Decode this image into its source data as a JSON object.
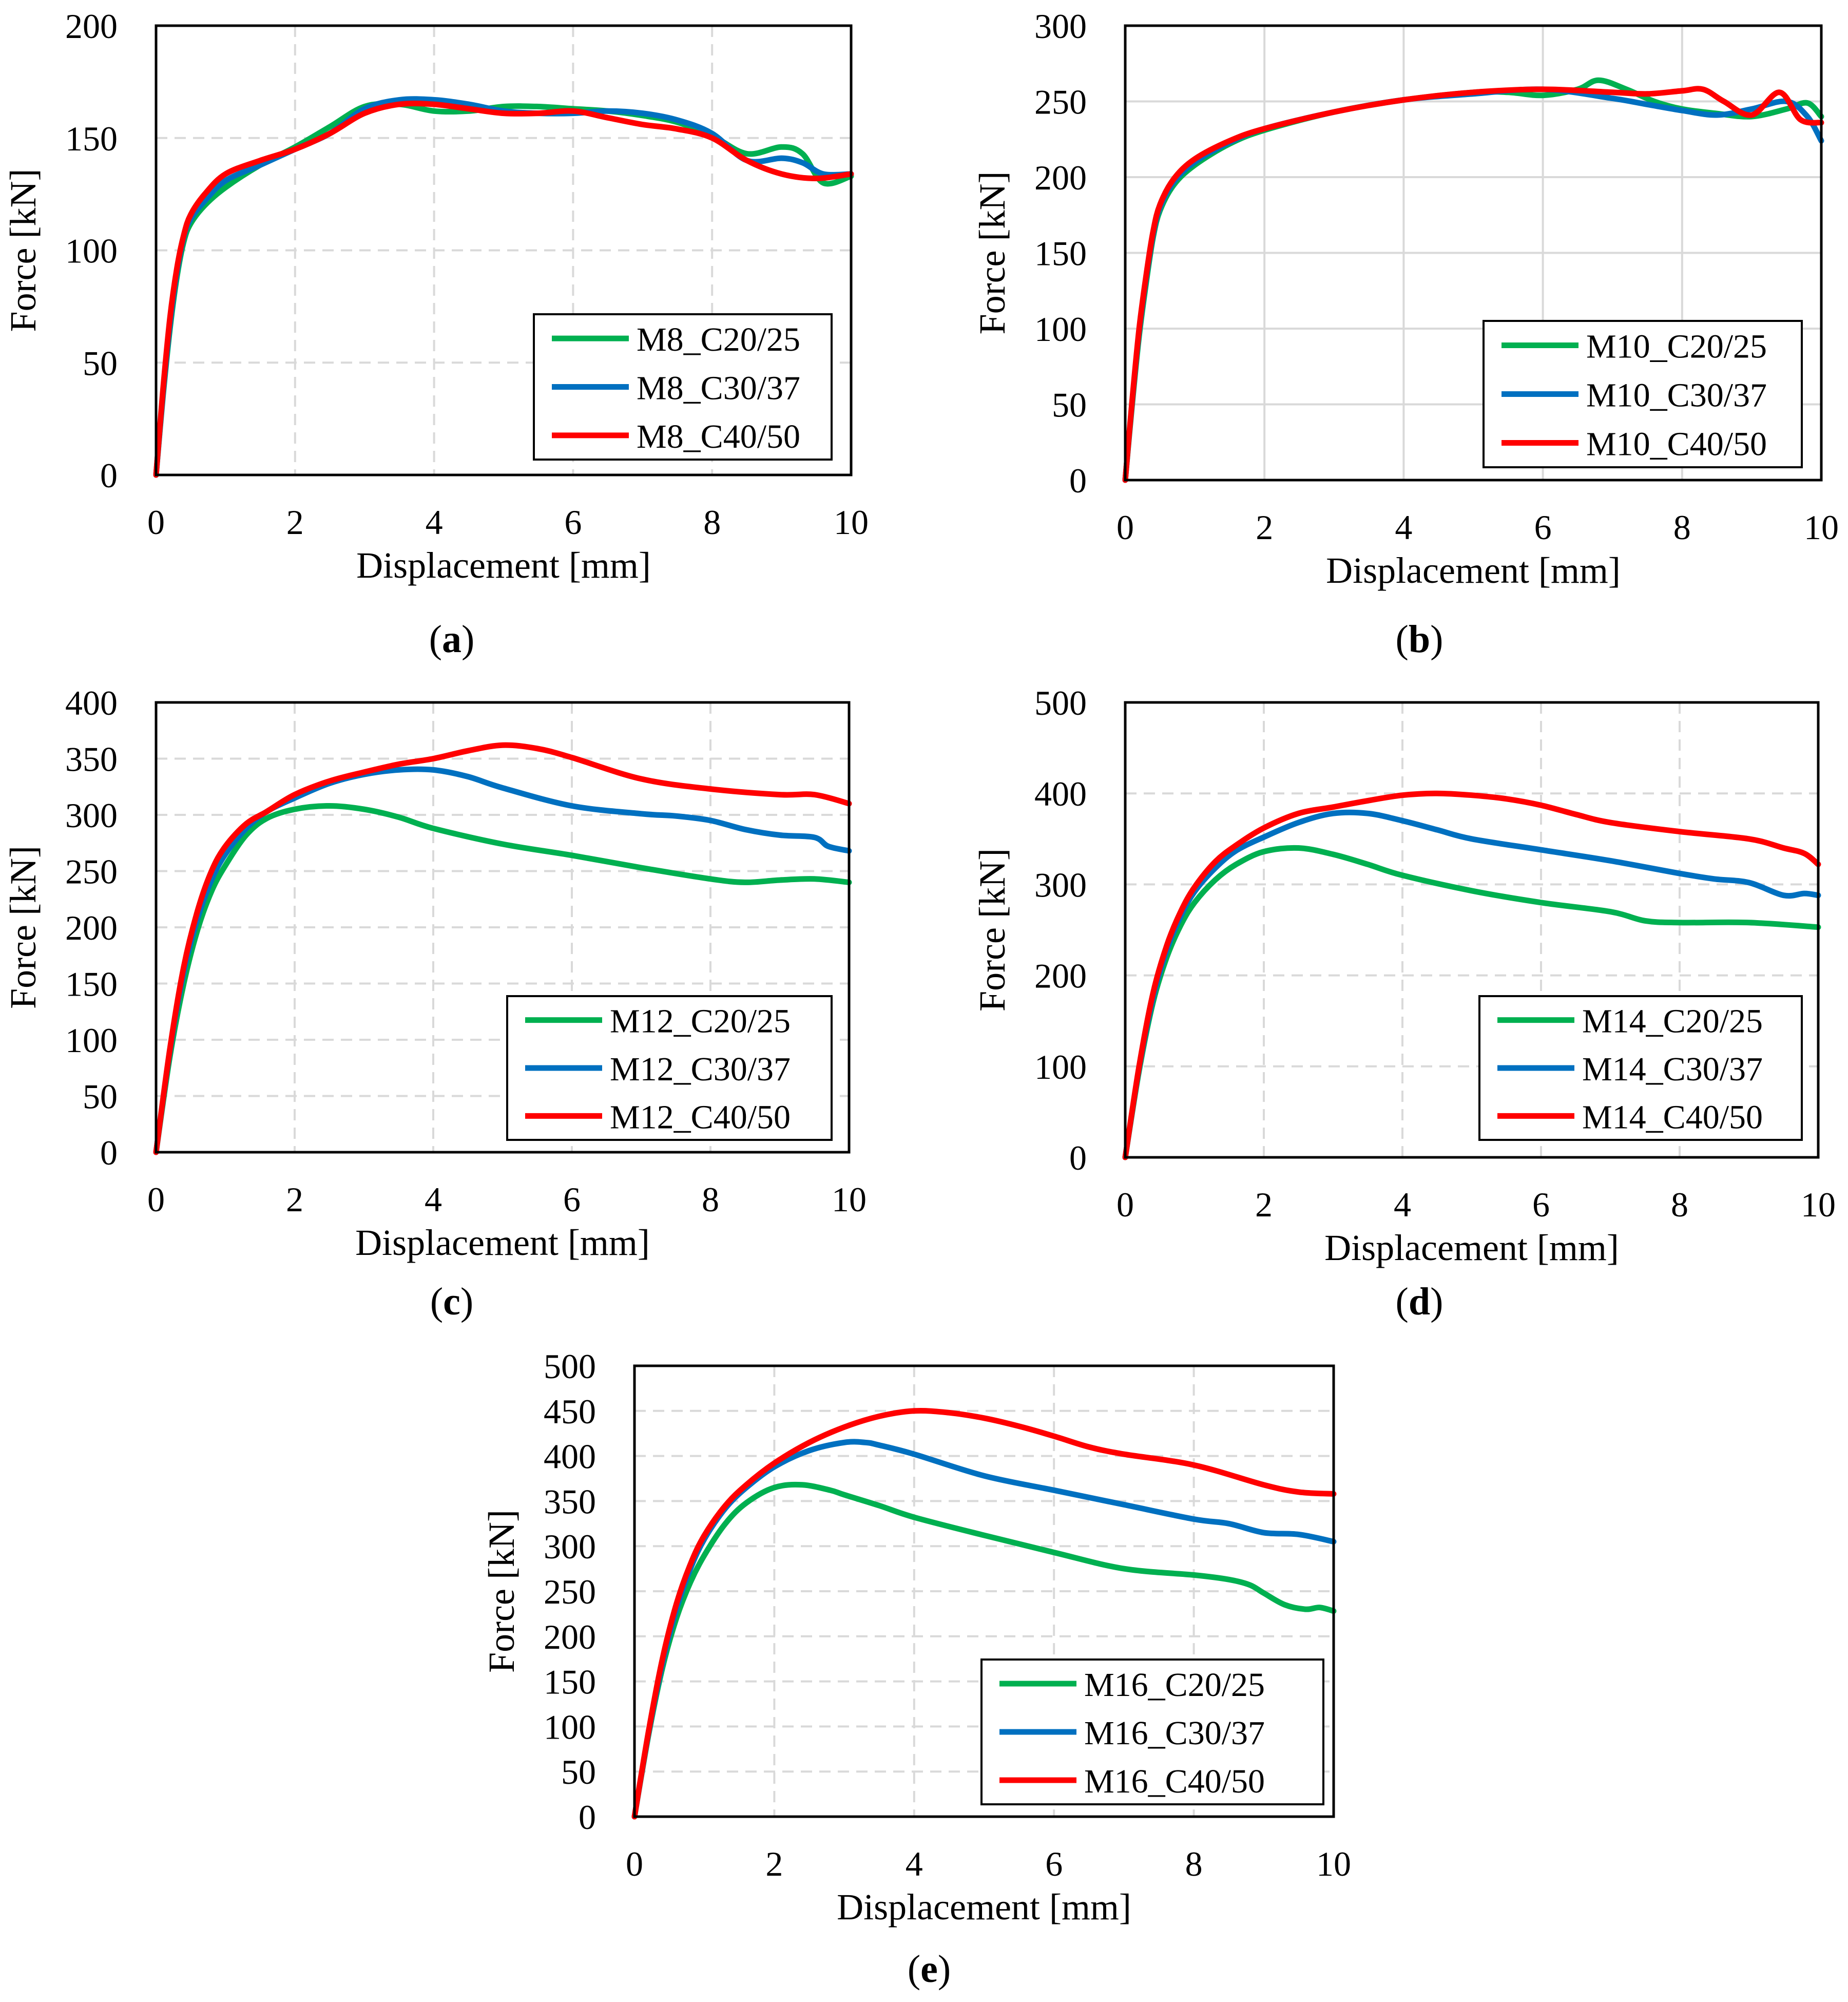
{
  "chart_data": [
    {
      "panel_label": "(a)",
      "type": "line",
      "xlabel": "Displacement [mm]",
      "ylabel": "Force [kN]",
      "xlim": [
        0,
        10
      ],
      "ylim": [
        0,
        200
      ],
      "xticks": [
        0,
        2,
        4,
        6,
        8,
        10
      ],
      "yticks": [
        0,
        50,
        100,
        150,
        200
      ],
      "grid": "dashed",
      "legend_position": "bottom-right",
      "series": [
        {
          "name": "M8_C20/25",
          "color": "#00b050",
          "x": [
            0,
            0.1,
            0.2,
            0.3,
            0.4,
            0.5,
            0.7,
            1.0,
            1.5,
            2.0,
            2.5,
            3.0,
            3.5,
            4.0,
            4.5,
            5.0,
            5.5,
            6.0,
            6.5,
            7.0,
            7.5,
            8.0,
            8.5,
            9.0,
            9.3,
            9.6,
            10.0
          ],
          "y": [
            0,
            35,
            65,
            88,
            104,
            112,
            120,
            128,
            138,
            146,
            155,
            164,
            165,
            162,
            162,
            164,
            164,
            163,
            162,
            160,
            157,
            151,
            143,
            146,
            143,
            130,
            133
          ]
        },
        {
          "name": "M8_C30/37",
          "color": "#0070c0",
          "x": [
            0,
            0.1,
            0.2,
            0.3,
            0.4,
            0.5,
            0.7,
            1.0,
            1.5,
            2.0,
            2.5,
            3.0,
            3.5,
            4.0,
            4.5,
            5.0,
            5.5,
            6.0,
            6.5,
            7.0,
            7.5,
            8.0,
            8.5,
            9.0,
            9.3,
            9.6,
            10.0
          ],
          "y": [
            0,
            36,
            67,
            90,
            106,
            114,
            122,
            131,
            138,
            145,
            152,
            163,
            167,
            167,
            165,
            162,
            161,
            161,
            162,
            161,
            158,
            152,
            140,
            141,
            139,
            134,
            134
          ]
        },
        {
          "name": "M8_C40/50",
          "color": "#ff0000",
          "x": [
            0,
            0.1,
            0.2,
            0.3,
            0.4,
            0.5,
            0.7,
            1.0,
            1.5,
            2.0,
            2.5,
            3.0,
            3.5,
            4.0,
            4.5,
            5.0,
            5.5,
            6.0,
            6.5,
            7.0,
            7.5,
            8.0,
            8.5,
            9.0,
            9.5,
            10.0
          ],
          "y": [
            0,
            38,
            70,
            92,
            107,
            116,
            125,
            134,
            140,
            145,
            152,
            161,
            165,
            165,
            163,
            161,
            161,
            162,
            159,
            156,
            154,
            150,
            140,
            134,
            132,
            134
          ]
        }
      ]
    },
    {
      "panel_label": "(b)",
      "type": "line",
      "xlabel": "Displacement [mm]",
      "ylabel": "Force [kN]",
      "xlim": [
        0,
        10
      ],
      "ylim": [
        0,
        300
      ],
      "xticks": [
        0,
        2,
        4,
        6,
        8,
        10
      ],
      "yticks": [
        0,
        50,
        100,
        150,
        200,
        250,
        300
      ],
      "grid": "solid",
      "legend_position": "bottom-right",
      "series": [
        {
          "name": "M10_C20/25",
          "color": "#00b050",
          "x": [
            0,
            0.1,
            0.2,
            0.3,
            0.4,
            0.5,
            0.7,
            1.0,
            1.5,
            2.0,
            3.0,
            4.0,
            5.0,
            5.5,
            6.0,
            6.5,
            6.8,
            7.2,
            7.6,
            8.0,
            8.5,
            9.0,
            9.5,
            9.8,
            10.0
          ],
          "y": [
            0,
            50,
            95,
            130,
            160,
            178,
            195,
            208,
            222,
            231,
            243,
            251,
            256,
            256,
            254,
            258,
            264,
            258,
            250,
            245,
            242,
            240,
            245,
            249,
            240
          ]
        },
        {
          "name": "M10_C30/37",
          "color": "#0070c0",
          "x": [
            0,
            0.1,
            0.2,
            0.3,
            0.4,
            0.5,
            0.7,
            1.0,
            1.5,
            2.0,
            3.0,
            4.0,
            5.0,
            6.0,
            7.0,
            7.5,
            8.0,
            8.5,
            9.0,
            9.5,
            9.8,
            10.0
          ],
          "y": [
            0,
            52,
            98,
            133,
            162,
            180,
            197,
            210,
            223,
            232,
            243,
            251,
            255,
            258,
            252,
            248,
            244,
            241,
            245,
            250,
            240,
            224
          ]
        },
        {
          "name": "M10_C40/50",
          "color": "#ff0000",
          "x": [
            0,
            0.1,
            0.2,
            0.3,
            0.4,
            0.5,
            0.7,
            1.0,
            1.5,
            2.0,
            3.0,
            4.0,
            5.0,
            6.0,
            7.0,
            7.5,
            8.0,
            8.3,
            8.6,
            9.0,
            9.4,
            9.7,
            10.0
          ],
          "y": [
            0,
            53,
            100,
            135,
            164,
            182,
            199,
            212,
            224,
            232,
            243,
            251,
            256,
            258,
            256,
            255,
            257,
            258,
            250,
            241,
            256,
            238,
            236
          ]
        }
      ]
    },
    {
      "panel_label": "(c)",
      "type": "line",
      "xlabel": "Displacement [mm]",
      "ylabel": "Force [kN]",
      "xlim": [
        0,
        10
      ],
      "ylim": [
        0,
        400
      ],
      "xticks": [
        0,
        2,
        4,
        6,
        8,
        10
      ],
      "yticks": [
        0,
        50,
        100,
        150,
        200,
        250,
        300,
        350,
        400
      ],
      "grid": "dashed",
      "legend_position": "bottom-right",
      "series": [
        {
          "name": "M12_C20/25",
          "color": "#00b050",
          "x": [
            0,
            0.2,
            0.4,
            0.6,
            0.8,
            1.0,
            1.3,
            1.6,
            2.0,
            2.5,
            3.0,
            3.5,
            4.0,
            5.0,
            6.0,
            7.0,
            8.0,
            8.5,
            9.0,
            9.5,
            10.0
          ],
          "y": [
            0,
            85,
            150,
            198,
            232,
            255,
            282,
            297,
            305,
            308,
            305,
            298,
            288,
            274,
            264,
            253,
            243,
            240,
            242,
            243,
            240
          ]
        },
        {
          "name": "M12_C30/37",
          "color": "#0070c0",
          "x": [
            0,
            0.2,
            0.4,
            0.6,
            0.8,
            1.0,
            1.3,
            1.6,
            2.0,
            2.5,
            3.0,
            3.5,
            4.0,
            4.5,
            5.0,
            6.0,
            7.0,
            7.5,
            8.0,
            8.5,
            9.0,
            9.5,
            9.7,
            10.0
          ],
          "y": [
            0,
            90,
            160,
            208,
            242,
            265,
            288,
            303,
            315,
            328,
            336,
            340,
            340,
            334,
            324,
            308,
            301,
            299,
            295,
            287,
            282,
            280,
            272,
            268
          ]
        },
        {
          "name": "M12_C40/50",
          "color": "#ff0000",
          "x": [
            0,
            0.2,
            0.4,
            0.6,
            0.8,
            1.0,
            1.3,
            1.6,
            2.0,
            2.5,
            3.0,
            3.5,
            4.0,
            4.5,
            5.0,
            5.5,
            6.0,
            7.0,
            8.0,
            9.0,
            9.5,
            10.0
          ],
          "y": [
            0,
            92,
            165,
            215,
            250,
            272,
            292,
            303,
            318,
            330,
            338,
            345,
            350,
            357,
            362,
            359,
            351,
            332,
            323,
            318,
            318,
            310
          ]
        }
      ]
    },
    {
      "panel_label": "(d)",
      "type": "line",
      "xlabel": "Displacement [mm]",
      "ylabel": "Force [kN]",
      "xlim": [
        0,
        10
      ],
      "ylim": [
        0,
        500
      ],
      "xticks": [
        0,
        2,
        4,
        6,
        8,
        10
      ],
      "yticks": [
        0,
        100,
        200,
        300,
        400,
        500
      ],
      "grid": "dashed",
      "legend_position": "bottom-right",
      "series": [
        {
          "name": "M14_C20/25",
          "color": "#00b050",
          "x": [
            0,
            0.2,
            0.4,
            0.6,
            0.8,
            1.0,
            1.3,
            1.6,
            2.0,
            2.5,
            3.0,
            3.5,
            4.0,
            5.0,
            6.0,
            7.0,
            7.5,
            8.0,
            9.0,
            10.0
          ],
          "y": [
            0,
            95,
            170,
            220,
            255,
            280,
            305,
            322,
            336,
            340,
            333,
            322,
            310,
            293,
            280,
            270,
            260,
            258,
            258,
            253
          ]
        },
        {
          "name": "M14_C30/37",
          "color": "#0070c0",
          "x": [
            0,
            0.2,
            0.4,
            0.6,
            0.8,
            1.0,
            1.3,
            1.6,
            2.0,
            2.5,
            3.0,
            3.5,
            4.0,
            4.5,
            5.0,
            6.0,
            7.0,
            8.0,
            8.5,
            9.0,
            9.5,
            9.8,
            10.0
          ],
          "y": [
            0,
            98,
            175,
            228,
            265,
            292,
            318,
            337,
            352,
            368,
            378,
            378,
            370,
            360,
            350,
            338,
            326,
            312,
            306,
            302,
            288,
            290,
            288
          ]
        },
        {
          "name": "M14_C40/50",
          "color": "#ff0000",
          "x": [
            0,
            0.2,
            0.4,
            0.6,
            0.8,
            1.0,
            1.3,
            1.6,
            2.0,
            2.5,
            3.0,
            3.5,
            4.0,
            4.5,
            5.0,
            5.5,
            6.0,
            6.5,
            7.0,
            8.0,
            9.0,
            9.5,
            9.8,
            10.0
          ],
          "y": [
            0,
            100,
            180,
            233,
            270,
            297,
            325,
            343,
            362,
            378,
            385,
            392,
            398,
            400,
            398,
            394,
            387,
            377,
            368,
            358,
            350,
            340,
            334,
            322
          ]
        }
      ]
    },
    {
      "panel_label": "(e)",
      "type": "line",
      "xlabel": "Displacement [mm]",
      "ylabel": "Force [kN]",
      "xlim": [
        0,
        10
      ],
      "ylim": [
        0,
        500
      ],
      "xticks": [
        0,
        2,
        4,
        6,
        8,
        10
      ],
      "yticks": [
        0,
        50,
        100,
        150,
        200,
        250,
        300,
        350,
        400,
        450,
        500
      ],
      "grid": "dashed",
      "legend_position": "bottom-right",
      "series": [
        {
          "name": "M16_C20/25",
          "color": "#00b050",
          "x": [
            0,
            0.2,
            0.4,
            0.6,
            0.8,
            1.0,
            1.3,
            1.6,
            2.0,
            2.4,
            2.8,
            3.0,
            3.5,
            4.0,
            5.0,
            6.0,
            7.0,
            8.0,
            8.5,
            8.8,
            9.0,
            9.3,
            9.6,
            9.8,
            10.0
          ],
          "y": [
            0,
            90,
            165,
            220,
            260,
            290,
            325,
            348,
            365,
            368,
            362,
            357,
            345,
            332,
            312,
            293,
            275,
            268,
            263,
            257,
            248,
            235,
            230,
            232,
            228
          ]
        },
        {
          "name": "M16_C30/37",
          "color": "#0070c0",
          "x": [
            0,
            0.2,
            0.4,
            0.6,
            0.8,
            1.0,
            1.3,
            1.6,
            2.0,
            2.5,
            3.0,
            3.3,
            3.5,
            4.0,
            5.0,
            6.0,
            7.0,
            8.0,
            8.5,
            9.0,
            9.5,
            10.0
          ],
          "y": [
            0,
            92,
            170,
            230,
            275,
            308,
            342,
            365,
            388,
            406,
            415,
            415,
            412,
            402,
            378,
            362,
            346,
            330,
            325,
            315,
            313,
            305
          ]
        },
        {
          "name": "M16_C40/50",
          "color": "#ff0000",
          "x": [
            0,
            0.2,
            0.4,
            0.6,
            0.8,
            1.0,
            1.3,
            1.6,
            2.0,
            2.5,
            3.0,
            3.5,
            4.0,
            4.5,
            5.0,
            5.5,
            6.0,
            6.5,
            7.0,
            8.0,
            9.0,
            9.5,
            10.0
          ],
          "y": [
            0,
            94,
            175,
            236,
            280,
            312,
            345,
            368,
            392,
            415,
            432,
            444,
            450,
            448,
            442,
            433,
            422,
            410,
            402,
            390,
            368,
            360,
            358
          ]
        }
      ]
    }
  ]
}
